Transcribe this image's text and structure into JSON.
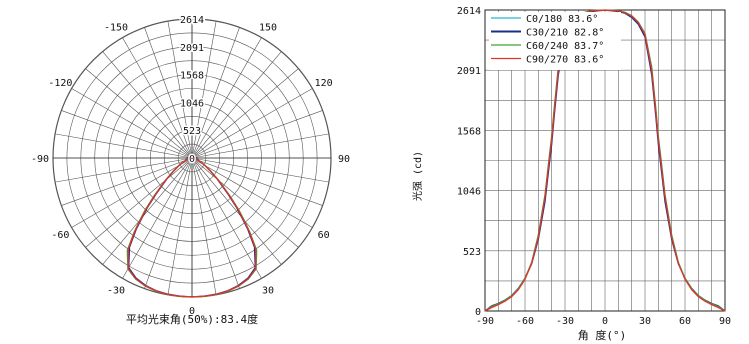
{
  "chart_data": [
    {
      "type": "polar",
      "caption": "平均光束角(50%):83.4度",
      "radial_ticks": [
        "2614",
        "2091",
        "1568",
        "1046",
        "523",
        "0"
      ],
      "radial_values": [
        2614,
        2091,
        1568,
        1046,
        523,
        0
      ],
      "rmax": 2614,
      "angle_tick_labels": [
        {
          "angle": 0,
          "label": "0"
        },
        {
          "angle": 30,
          "label": "30"
        },
        {
          "angle": -30,
          "label": "-30"
        },
        {
          "angle": 60,
          "label": "60"
        },
        {
          "angle": -60,
          "label": "-60"
        },
        {
          "angle": 90,
          "label": "90"
        },
        {
          "angle": -90,
          "label": "-90"
        },
        {
          "angle": 120,
          "label": "120"
        },
        {
          "angle": -120,
          "label": "-120"
        },
        {
          "angle": 150,
          "label": "150"
        },
        {
          "angle": -150,
          "label": "-150"
        }
      ],
      "grid": true,
      "series": [
        {
          "name": "C0/180 83.6°",
          "color": "#2ab7c9",
          "angles": [
            -90,
            -85,
            -80,
            -75,
            -70,
            -65,
            -60,
            -55,
            -50,
            -45,
            -42,
            -40,
            -38,
            -35,
            -30,
            -25,
            -20,
            -15,
            -10,
            -5,
            0,
            5,
            10,
            15,
            20,
            25,
            30,
            35,
            38,
            40,
            42,
            45,
            50,
            55,
            60,
            65,
            70,
            75,
            80,
            85,
            90
          ],
          "values": [
            0,
            40,
            60,
            90,
            130,
            190,
            280,
            420,
            650,
            1000,
            1300,
            1500,
            1750,
            2100,
            2400,
            2500,
            2560,
            2590,
            2605,
            2610,
            2614,
            2610,
            2605,
            2590,
            2560,
            2500,
            2400,
            2100,
            1750,
            1500,
            1300,
            1000,
            650,
            420,
            280,
            190,
            130,
            90,
            60,
            40,
            0
          ]
        },
        {
          "name": "C30/210 82.8°",
          "color": "#1a2f8a",
          "angles": [
            -90,
            -85,
            -80,
            -75,
            -70,
            -65,
            -60,
            -55,
            -50,
            -45,
            -42,
            -40,
            -38,
            -35,
            -30,
            -25,
            -20,
            -15,
            -10,
            -5,
            0,
            5,
            10,
            15,
            20,
            25,
            30,
            35,
            38,
            40,
            42,
            45,
            50,
            55,
            60,
            65,
            70,
            75,
            80,
            85,
            90
          ],
          "values": [
            0,
            45,
            65,
            95,
            135,
            195,
            285,
            410,
            620,
            950,
            1250,
            1450,
            1700,
            2050,
            2380,
            2490,
            2550,
            2585,
            2600,
            2608,
            2612,
            2608,
            2600,
            2585,
            2550,
            2490,
            2380,
            2050,
            1700,
            1450,
            1250,
            950,
            620,
            410,
            285,
            195,
            135,
            95,
            65,
            45,
            0
          ]
        },
        {
          "name": "C60/240 83.7°",
          "color": "#3fa535",
          "angles": [
            -90,
            -85,
            -80,
            -75,
            -70,
            -65,
            -60,
            -55,
            -50,
            -45,
            -42,
            -40,
            -38,
            -35,
            -30,
            -25,
            -20,
            -15,
            -10,
            -5,
            0,
            5,
            10,
            15,
            20,
            25,
            30,
            35,
            38,
            40,
            42,
            45,
            50,
            55,
            60,
            65,
            70,
            75,
            80,
            85,
            90
          ],
          "values": [
            0,
            40,
            62,
            92,
            132,
            192,
            282,
            425,
            660,
            1010,
            1320,
            1520,
            1770,
            2120,
            2410,
            2510,
            2565,
            2595,
            2608,
            2612,
            2613,
            2612,
            2608,
            2595,
            2565,
            2510,
            2410,
            2120,
            1770,
            1520,
            1320,
            1010,
            660,
            425,
            282,
            192,
            132,
            92,
            62,
            40,
            0
          ]
        },
        {
          "name": "C90/270 83.6°",
          "color": "#e0342a",
          "angles": [
            -90,
            -85,
            -80,
            -75,
            -70,
            -65,
            -60,
            -55,
            -50,
            -45,
            -42,
            -40,
            -38,
            -35,
            -30,
            -25,
            -20,
            -15,
            -10,
            -5,
            0,
            5,
            10,
            15,
            20,
            25,
            30,
            35,
            38,
            40,
            42,
            45,
            50,
            55,
            60,
            65,
            70,
            75,
            80,
            85,
            90
          ],
          "values": [
            0,
            30,
            55,
            85,
            125,
            185,
            275,
            415,
            640,
            990,
            1290,
            1490,
            1740,
            2090,
            2400,
            2505,
            2560,
            2590,
            2606,
            2611,
            2614,
            2611,
            2606,
            2590,
            2560,
            2505,
            2400,
            2090,
            1740,
            1490,
            1290,
            990,
            640,
            415,
            275,
            185,
            125,
            85,
            55,
            30,
            0
          ]
        }
      ]
    },
    {
      "type": "line",
      "ylabel": "光强 (cd)",
      "xlabel": "角 度(°)",
      "xlim": [
        -90,
        90
      ],
      "ylim": [
        0,
        2614
      ],
      "x_ticks": [
        -90,
        -60,
        -30,
        0,
        30,
        60,
        90
      ],
      "x_tick_labels": [
        "-90",
        "-60",
        "-30",
        "0",
        "30",
        "60",
        "90"
      ],
      "y_ticks": [
        0,
        523,
        1046,
        1568,
        2091,
        2614
      ],
      "y_tick_labels": [
        "0",
        "523",
        "1046",
        "1568",
        "2091",
        "2614"
      ],
      "grid": true,
      "legend_position": "top-left",
      "series": [
        {
          "name": "C0/180 83.6°",
          "color": "#2ab7c9",
          "x": [
            -90,
            -85,
            -80,
            -75,
            -70,
            -65,
            -60,
            -55,
            -50,
            -45,
            -42,
            -40,
            -38,
            -35,
            -30,
            -25,
            -20,
            -15,
            -10,
            -5,
            0,
            5,
            10,
            15,
            20,
            25,
            30,
            35,
            38,
            40,
            42,
            45,
            50,
            55,
            60,
            65,
            70,
            75,
            80,
            85,
            90
          ],
          "y": [
            0,
            40,
            60,
            90,
            130,
            190,
            280,
            420,
            650,
            1000,
            1300,
            1500,
            1750,
            2100,
            2400,
            2500,
            2560,
            2590,
            2605,
            2610,
            2614,
            2610,
            2605,
            2590,
            2560,
            2500,
            2400,
            2100,
            1750,
            1500,
            1300,
            1000,
            650,
            420,
            280,
            190,
            130,
            90,
            60,
            40,
            0
          ]
        },
        {
          "name": "C30/210 82.8°",
          "color": "#1a2f8a",
          "x": [
            -90,
            -85,
            -80,
            -75,
            -70,
            -65,
            -60,
            -55,
            -50,
            -45,
            -42,
            -40,
            -38,
            -35,
            -30,
            -25,
            -20,
            -15,
            -10,
            -5,
            0,
            5,
            10,
            15,
            20,
            25,
            30,
            35,
            38,
            40,
            42,
            45,
            50,
            55,
            60,
            65,
            70,
            75,
            80,
            85,
            90
          ],
          "y": [
            0,
            45,
            65,
            95,
            135,
            195,
            285,
            410,
            620,
            950,
            1250,
            1450,
            1700,
            2050,
            2380,
            2490,
            2550,
            2585,
            2600,
            2608,
            2612,
            2608,
            2600,
            2585,
            2550,
            2490,
            2380,
            2050,
            1700,
            1450,
            1250,
            950,
            620,
            410,
            285,
            195,
            135,
            95,
            65,
            45,
            0
          ]
        },
        {
          "name": "C60/240 83.7°",
          "color": "#3fa535",
          "x": [
            -90,
            -85,
            -80,
            -75,
            -70,
            -65,
            -60,
            -55,
            -50,
            -45,
            -42,
            -40,
            -38,
            -35,
            -30,
            -25,
            -20,
            -15,
            -10,
            -5,
            0,
            5,
            10,
            15,
            20,
            25,
            30,
            35,
            38,
            40,
            42,
            45,
            50,
            55,
            60,
            65,
            70,
            75,
            80,
            85,
            90
          ],
          "y": [
            0,
            40,
            62,
            92,
            132,
            192,
            282,
            425,
            660,
            1010,
            1320,
            1520,
            1770,
            2120,
            2410,
            2510,
            2565,
            2595,
            2608,
            2612,
            2613,
            2612,
            2608,
            2595,
            2565,
            2510,
            2410,
            2120,
            1770,
            1520,
            1320,
            1010,
            660,
            425,
            282,
            192,
            132,
            92,
            62,
            40,
            0
          ]
        },
        {
          "name": "C90/270 83.6°",
          "color": "#e0342a",
          "x": [
            -90,
            -85,
            -80,
            -75,
            -70,
            -65,
            -60,
            -55,
            -50,
            -45,
            -42,
            -40,
            -38,
            -35,
            -30,
            -25,
            -20,
            -15,
            -10,
            -5,
            0,
            5,
            10,
            15,
            20,
            25,
            30,
            35,
            38,
            40,
            42,
            45,
            50,
            55,
            60,
            65,
            70,
            75,
            80,
            85,
            90
          ],
          "y": [
            0,
            30,
            55,
            85,
            125,
            185,
            275,
            415,
            640,
            990,
            1290,
            1490,
            1740,
            2090,
            2400,
            2505,
            2560,
            2590,
            2606,
            2611,
            2614,
            2611,
            2606,
            2590,
            2560,
            2505,
            2400,
            2090,
            1740,
            1490,
            1290,
            990,
            640,
            415,
            275,
            185,
            125,
            85,
            55,
            30,
            0
          ]
        }
      ]
    }
  ]
}
